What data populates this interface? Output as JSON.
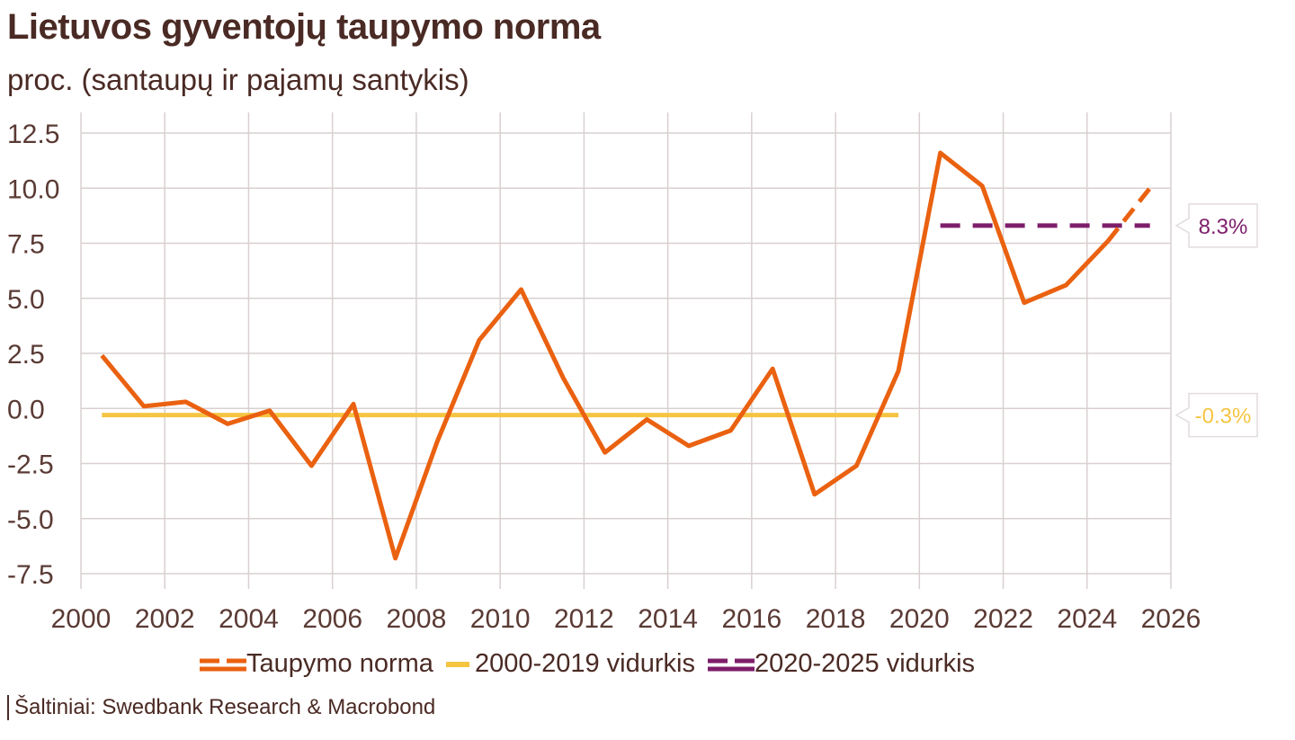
{
  "title": "Lietuvos gyventojų taupymo norma",
  "subtitle": "proc. (santaupų ir pajamų santykis)",
  "source": "Šaltiniai: Swedbank Research & Macrobond",
  "colors": {
    "saving": "#ea6110",
    "avg_2000_2019": "#f5c542",
    "avg_2020_2025": "#7d1e6a",
    "grid": "#d9d0d0",
    "text": "#4a2a24"
  },
  "chart_data": {
    "type": "line",
    "title": "Lietuvos gyventojų taupymo norma",
    "subtitle": "proc. (santaupų ir pajamų santykis)",
    "xlim": [
      2000,
      2026
    ],
    "ylim": [
      -8.5,
      13.5
    ],
    "x_ticks": [
      2000,
      2002,
      2004,
      2006,
      2008,
      2010,
      2012,
      2014,
      2016,
      2018,
      2020,
      2022,
      2024,
      2026
    ],
    "y_ticks": [
      -7.5,
      -5.0,
      -2.5,
      0.0,
      2.5,
      5.0,
      7.5,
      10.0,
      12.5
    ],
    "y_tick_labels": [
      "-7.5",
      "-5.0",
      "-2.5",
      "0.0",
      "2.5",
      "5.0",
      "7.5",
      "10.0",
      "12.5"
    ],
    "grid": true,
    "legend_position": "bottom",
    "series": [
      {
        "name": "Taupymo norma",
        "x": [
          2000.5,
          2001.5,
          2002.5,
          2003.5,
          2004.5,
          2005.5,
          2006.5,
          2007.5,
          2008.5,
          2009.5,
          2010.5,
          2011.5,
          2012.5,
          2013.5,
          2014.5,
          2015.5,
          2016.5,
          2017.5,
          2018.5,
          2019.5,
          2020.5,
          2021.5,
          2022.5,
          2023.5,
          2024.5
        ],
        "y": [
          2.4,
          0.1,
          0.3,
          -0.7,
          -0.1,
          -2.6,
          0.2,
          -6.8,
          -1.5,
          3.1,
          5.4,
          1.4,
          -2.0,
          -0.5,
          -1.7,
          -1.0,
          1.8,
          -3.9,
          -2.6,
          1.7,
          11.6,
          10.1,
          4.8,
          5.6,
          7.6
        ],
        "forecast_x": [
          2024.5,
          2025.5
        ],
        "forecast_y": [
          7.6,
          10.0
        ]
      },
      {
        "name": "2000-2019 vidurkis",
        "x": [
          2000.5,
          2019.5
        ],
        "y": [
          -0.3,
          -0.3
        ]
      },
      {
        "name": "2020-2025 vidurkis",
        "x": [
          2020.5,
          2025.5
        ],
        "y": [
          8.3,
          8.3
        ]
      }
    ],
    "annotations": [
      {
        "text": "8.3%",
        "value": 8.3,
        "series": "2020-2025 vidurkis"
      },
      {
        "text": "-0.3%",
        "value": -0.3,
        "series": "2000-2019 vidurkis"
      }
    ]
  },
  "legend": {
    "items": [
      {
        "label": "Taupymo norma"
      },
      {
        "label": "2000-2019 vidurkis"
      },
      {
        "label": "2020-2025 vidurkis"
      }
    ]
  }
}
